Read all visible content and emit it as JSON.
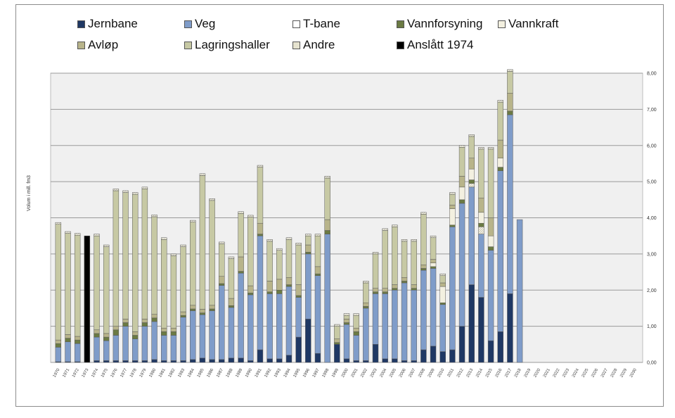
{
  "chart_data": {
    "type": "bar",
    "stacked": true,
    "ylabel": "Volum i mill. fm3",
    "ylim": [
      0,
      8
    ],
    "yticks": [
      "0,00",
      "1,00",
      "2,00",
      "3,00",
      "4,00",
      "5,00",
      "6,00",
      "7,00",
      "8,00"
    ],
    "grid": true,
    "legend_position": "top",
    "categories": [
      "1970",
      "1971",
      "1972",
      "1973",
      "1974",
      "1975",
      "1976",
      "1977",
      "1978",
      "1979",
      "1980",
      "1981",
      "1982",
      "1983",
      "1984",
      "1985",
      "1986",
      "1987",
      "1988",
      "1989",
      "1990",
      "1991",
      "1992",
      "1993",
      "1994",
      "1995",
      "1996",
      "1997",
      "1998",
      "1999",
      "2000",
      "2001",
      "2002",
      "2003",
      "2004",
      "2005",
      "2006",
      "2007",
      "2008",
      "2009",
      "2010",
      "2011",
      "2012",
      "2013",
      "2014",
      "2015",
      "2016",
      "2017",
      "2018",
      "2019",
      "2020",
      "2021",
      "2022",
      "2023",
      "2024",
      "2025",
      "2026",
      "2027",
      "2028",
      "2029",
      "2030"
    ],
    "series": [
      {
        "name": "Jernbane",
        "color": "#1f3864",
        "pattern": "solid",
        "values": [
          0.02,
          0.02,
          0.02,
          0,
          0.05,
          0.05,
          0.05,
          0.05,
          0.05,
          0.05,
          0.08,
          0.05,
          0.05,
          0.05,
          0.08,
          0.12,
          0.08,
          0.08,
          0.12,
          0.12,
          0.05,
          0.35,
          0.1,
          0.1,
          0.2,
          0.7,
          1.2,
          0.25,
          0,
          0.5,
          0.1,
          0.05,
          0.05,
          0.5,
          0.1,
          0.1,
          0.05,
          0.05,
          0.35,
          0.45,
          0.3,
          0.35,
          1.0,
          2.15,
          1.8,
          0.6,
          0.85,
          1.9,
          0,
          0,
          0,
          0,
          0,
          0,
          0,
          0,
          0,
          0,
          0,
          0,
          0
        ]
      },
      {
        "name": "Veg",
        "color": "#7f9cc9",
        "pattern": "solid",
        "values": [
          0.4,
          0.55,
          0.5,
          0,
          0.65,
          0.55,
          0.7,
          0.95,
          0.6,
          0.95,
          1.05,
          0.7,
          0.7,
          1.2,
          1.35,
          1.2,
          1.35,
          2.05,
          1.4,
          2.35,
          1.82,
          3.15,
          1.8,
          1.8,
          1.9,
          1.1,
          1.8,
          2.15,
          3.55,
          0,
          0.95,
          0.7,
          1.45,
          1.4,
          1.8,
          1.9,
          2.15,
          1.95,
          2.2,
          2.15,
          1.3,
          3.4,
          3.4,
          2.7,
          1.75,
          2.5,
          4.45,
          4.95,
          3.95,
          0,
          0,
          0,
          0,
          0,
          0,
          0,
          0,
          0,
          0,
          0,
          0
        ]
      },
      {
        "name": "T-bane",
        "color": "#ffffff",
        "pattern": "hatch-light",
        "values": [
          0,
          0,
          0,
          0,
          0,
          0,
          0,
          0,
          0,
          0,
          0,
          0,
          0,
          0,
          0,
          0,
          0,
          0,
          0,
          0,
          0,
          0,
          0,
          0,
          0,
          0,
          0,
          0,
          0,
          0,
          0,
          0,
          0,
          0,
          0,
          0,
          0,
          0,
          0,
          0,
          0,
          0,
          0,
          0.1,
          0.2,
          0,
          0,
          0,
          0,
          0,
          0,
          0,
          0,
          0,
          0,
          0,
          0,
          0,
          0,
          0,
          0
        ]
      },
      {
        "name": "Vannforsyning",
        "color": "#6b7a43",
        "pattern": "solid",
        "values": [
          0.1,
          0.1,
          0.1,
          0,
          0.1,
          0.1,
          0.15,
          0.1,
          0.1,
          0.1,
          0.1,
          0.1,
          0.1,
          0.05,
          0.05,
          0.05,
          0.05,
          0.05,
          0.05,
          0.05,
          0.05,
          0.05,
          0.05,
          0.1,
          0.05,
          0.05,
          0.05,
          0.05,
          0.1,
          0.05,
          0.05,
          0.1,
          0.05,
          0.05,
          0.05,
          0.05,
          0.05,
          0.05,
          0.05,
          0.05,
          0.05,
          0.05,
          0.1,
          0.1,
          0.1,
          0.1,
          0.1,
          0.1,
          0,
          0,
          0,
          0,
          0,
          0,
          0,
          0,
          0,
          0,
          0,
          0,
          0
        ]
      },
      {
        "name": "Vannkraft",
        "color": "#f3f0e0",
        "pattern": "solid",
        "values": [
          0,
          0,
          0,
          0,
          0,
          0,
          0,
          0,
          0,
          0,
          0,
          0,
          0,
          0,
          0,
          0,
          0,
          0,
          0,
          0,
          0,
          0,
          0,
          0,
          0,
          0,
          0,
          0,
          0,
          0,
          0,
          0,
          0,
          0,
          0,
          0,
          0,
          0,
          0,
          0.1,
          0.45,
          0.45,
          0.35,
          0.3,
          0.3,
          0.3,
          0.25,
          0,
          0,
          0,
          0,
          0,
          0,
          0,
          0,
          0,
          0,
          0,
          0,
          0,
          0
        ]
      },
      {
        "name": "Avløp",
        "color": "#b8b48a",
        "pattern": "solid",
        "values": [
          0.1,
          0.1,
          0.1,
          0,
          0.1,
          0.1,
          0.1,
          0.1,
          0.1,
          0.1,
          0.1,
          0.1,
          0.1,
          0.1,
          0.1,
          0.1,
          0.1,
          0.2,
          0.2,
          0.4,
          0.2,
          0.3,
          0.3,
          0.3,
          0.2,
          0.3,
          0.2,
          0.2,
          0.3,
          0.1,
          0.1,
          0.1,
          0.1,
          0.1,
          0.1,
          0.1,
          0.1,
          0.1,
          0.1,
          0.1,
          0.1,
          0.1,
          0.3,
          0.3,
          0.4,
          0.5,
          0.5,
          0.5,
          0,
          0,
          0,
          0,
          0,
          0,
          0,
          0,
          0,
          0,
          0,
          0,
          0
        ]
      },
      {
        "name": "Lagringshaller",
        "color": "#c7c9a4",
        "pattern": "solid",
        "values": [
          3.2,
          2.8,
          2.8,
          0,
          2.6,
          2.4,
          3.75,
          3.5,
          3.8,
          3.6,
          2.7,
          2.45,
          2.0,
          1.8,
          2.3,
          3.7,
          2.9,
          0.9,
          1.1,
          1.2,
          1.9,
          1.55,
          1.1,
          0.8,
          1.05,
          1.1,
          0.25,
          0.85,
          1.15,
          0.35,
          0.1,
          0.35,
          0.55,
          0.95,
          1.6,
          1.6,
          1.0,
          1.2,
          1.4,
          0.6,
          0.2,
          0.3,
          0.8,
          0.6,
          1.35,
          1.9,
          1.05,
          0.6,
          0,
          0,
          0,
          0,
          0,
          0,
          0,
          0,
          0,
          0,
          0,
          0,
          0
        ]
      },
      {
        "name": "Andre",
        "color": "#e6e3cf",
        "pattern": "hatch-light",
        "values": [
          0.05,
          0.05,
          0.05,
          0,
          0.05,
          0.05,
          0.05,
          0.05,
          0.05,
          0.05,
          0.05,
          0.05,
          0.05,
          0.05,
          0.05,
          0.05,
          0.05,
          0.05,
          0.05,
          0.05,
          0.05,
          0.05,
          0.05,
          0.05,
          0.05,
          0.05,
          0.05,
          0.05,
          0.05,
          0.05,
          0.05,
          0.05,
          0.05,
          0.05,
          0.05,
          0.05,
          0.05,
          0.05,
          0.05,
          0.05,
          0.05,
          0.05,
          0.05,
          0.05,
          0.05,
          0.05,
          0.05,
          0.05,
          0,
          0,
          0,
          0,
          0,
          0,
          0,
          0,
          0,
          0,
          0,
          0,
          0
        ]
      },
      {
        "name": "Anslått 1974",
        "color": "#000000",
        "pattern": "solid",
        "values": [
          0,
          0,
          0,
          3.5,
          0,
          0,
          0,
          0,
          0,
          0,
          0,
          0,
          0,
          0,
          0,
          0,
          0,
          0,
          0,
          0,
          0,
          0,
          0,
          0,
          0,
          0,
          0,
          0,
          0,
          0,
          0,
          0,
          0,
          0,
          0,
          0,
          0,
          0,
          0,
          0,
          0,
          0,
          0,
          0,
          0,
          0,
          0,
          0,
          0,
          0,
          0,
          0,
          0,
          0,
          0,
          0,
          0,
          0,
          0,
          0,
          0
        ]
      }
    ]
  }
}
